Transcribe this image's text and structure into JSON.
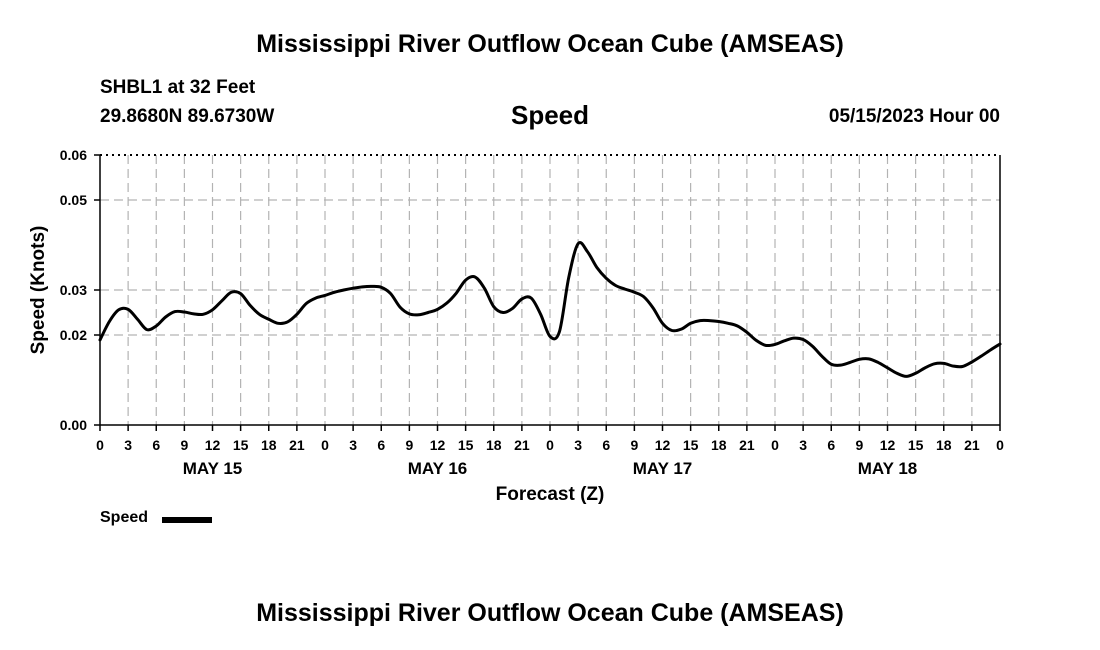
{
  "header": {
    "title": "Mississippi River Outflow Ocean Cube (AMSEAS)",
    "station": "SHBL1 at 32 Feet",
    "location": "29.8680N  89.6730W",
    "metric": "Speed",
    "datetime": "05/15/2023 Hour 00"
  },
  "footer": {
    "title": "Mississippi River Outflow Ocean Cube (AMSEAS)"
  },
  "legend": {
    "label": "Speed",
    "color": "#000000"
  },
  "chart_data": {
    "type": "line",
    "title": "Speed",
    "xlabel": "Forecast (Z)",
    "ylabel": "Speed (Knots)",
    "xlim": [
      0,
      96
    ],
    "ylim": [
      0,
      0.06
    ],
    "y_ticks": [
      0.0,
      0.02,
      0.03,
      0.05,
      0.06
    ],
    "y_tick_labels": [
      "0.00",
      "0.02",
      "0.03",
      "0.05",
      "0.06"
    ],
    "x_ticks": [
      0,
      3,
      6,
      9,
      12,
      15,
      18,
      21,
      24,
      27,
      30,
      33,
      36,
      39,
      42,
      45,
      48,
      51,
      54,
      57,
      60,
      63,
      66,
      69,
      72,
      75,
      78,
      81,
      84,
      87,
      90,
      93,
      96
    ],
    "x_tick_labels": [
      "0",
      "3",
      "6",
      "9",
      "12",
      "15",
      "18",
      "21",
      "0",
      "3",
      "6",
      "9",
      "12",
      "15",
      "18",
      "21",
      "0",
      "3",
      "6",
      "9",
      "12",
      "15",
      "18",
      "21",
      "0",
      "3",
      "6",
      "9",
      "12",
      "15",
      "18",
      "21",
      "0"
    ],
    "day_labels": [
      {
        "label": "MAY 15",
        "hour": 12
      },
      {
        "label": "MAY 16",
        "hour": 36
      },
      {
        "label": "MAY 17",
        "hour": 60
      },
      {
        "label": "MAY 18",
        "hour": 84
      }
    ],
    "grid": true,
    "series": [
      {
        "name": "Speed",
        "color": "#000000",
        "x": [
          0,
          1,
          2,
          3,
          4,
          5,
          6,
          7,
          8,
          9,
          10,
          11,
          12,
          13,
          14,
          15,
          16,
          17,
          18,
          19,
          20,
          21,
          22,
          23,
          24,
          25,
          26,
          27,
          28,
          29,
          30,
          31,
          32,
          33,
          34,
          35,
          36,
          37,
          38,
          39,
          40,
          41,
          42,
          43,
          44,
          45,
          46,
          47,
          48,
          49,
          50,
          51,
          52,
          53,
          54,
          55,
          56,
          57,
          58,
          59,
          60,
          61,
          62,
          63,
          64,
          65,
          66,
          67,
          68,
          69,
          70,
          71,
          72,
          73,
          74,
          75,
          76,
          77,
          78,
          79,
          80,
          81,
          82,
          83,
          84,
          85,
          86,
          87,
          88,
          89,
          90,
          91,
          92,
          93,
          94,
          95,
          96
        ],
        "values": [
          0.0189,
          0.023,
          0.0256,
          0.0257,
          0.0235,
          0.0212,
          0.022,
          0.024,
          0.0252,
          0.0251,
          0.0247,
          0.0246,
          0.0256,
          0.0276,
          0.0295,
          0.0292,
          0.0266,
          0.0246,
          0.0235,
          0.0226,
          0.0229,
          0.0246,
          0.027,
          0.0282,
          0.0288,
          0.0295,
          0.03,
          0.0304,
          0.0307,
          0.0308,
          0.0306,
          0.0292,
          0.0262,
          0.0247,
          0.0245,
          0.025,
          0.0257,
          0.0271,
          0.0293,
          0.0322,
          0.0329,
          0.0304,
          0.0263,
          0.025,
          0.0259,
          0.028,
          0.0282,
          0.0246,
          0.0197,
          0.0207,
          0.0328,
          0.0403,
          0.0385,
          0.035,
          0.0326,
          0.031,
          0.0302,
          0.0295,
          0.0285,
          0.026,
          0.0226,
          0.021,
          0.0213,
          0.0226,
          0.0232,
          0.0232,
          0.023,
          0.0226,
          0.022,
          0.0206,
          0.0188,
          0.0177,
          0.0179,
          0.0187,
          0.0193,
          0.019,
          0.0175,
          0.0153,
          0.0135,
          0.0133,
          0.0139,
          0.0146,
          0.0147,
          0.0139,
          0.0127,
          0.0115,
          0.0108,
          0.0115,
          0.0127,
          0.0136,
          0.0137,
          0.0131,
          0.013,
          0.014,
          0.0153,
          0.0167,
          0.018
        ]
      }
    ]
  }
}
